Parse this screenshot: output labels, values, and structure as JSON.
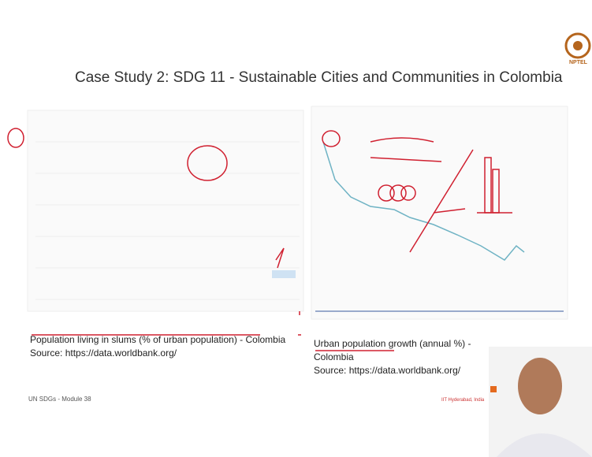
{
  "slide": {
    "title": "Case Study 2: SDG 11 - Sustainable Cities and Communities in Colombia",
    "logo": "NPTEL",
    "left_caption": {
      "line1": "Population living in slums (% of urban population) - Colombia",
      "source": "Source: https://data.worldbank.org/"
    },
    "right_caption": {
      "line1": "Urban population growth (annual %) -",
      "line2": "Colombia",
      "source": "Source: https://data.worldbank.org/"
    },
    "footer": "UN SDGs - Module 38",
    "affiliation": "IIT Hyderabad, India"
  }
}
